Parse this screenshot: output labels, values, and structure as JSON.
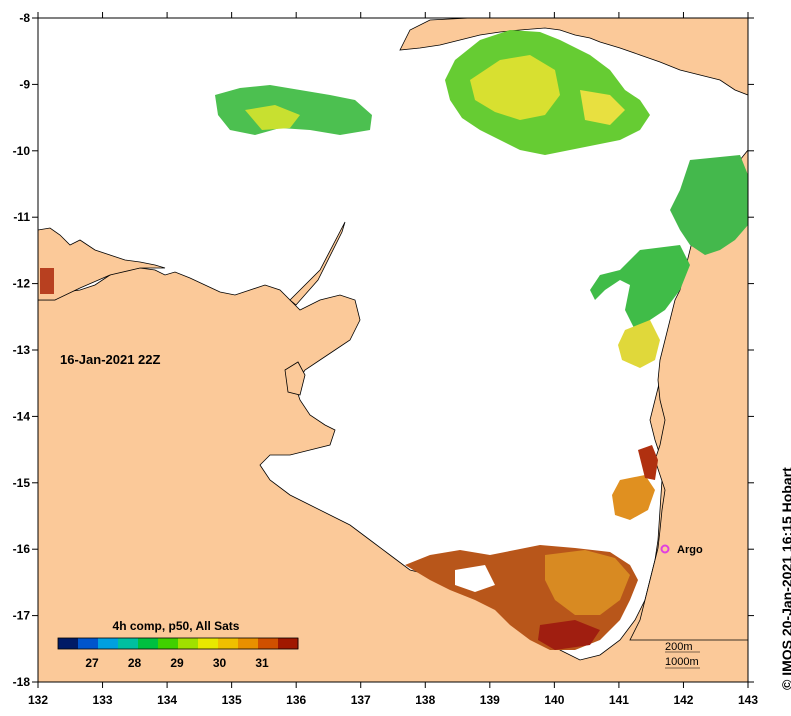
{
  "map": {
    "date_label": "16-Jan-2021 22Z",
    "legend_title": "4h comp, p50, All Sats",
    "colorbar": {
      "ticks": [
        "27",
        "28",
        "29",
        "30",
        "31"
      ],
      "colors": [
        "#001a66",
        "#0055cc",
        "#00a0e0",
        "#00c0a0",
        "#00c040",
        "#40d000",
        "#a0e000",
        "#e8e800",
        "#f0c000",
        "#e89000",
        "#d05000",
        "#a01800"
      ]
    },
    "x_ticks": [
      "132",
      "133",
      "134",
      "135",
      "136",
      "137",
      "138",
      "139",
      "140",
      "141",
      "142",
      "143"
    ],
    "y_ticks": [
      "-8",
      "-9",
      "-10",
      "-11",
      "-12",
      "-13",
      "-14",
      "-15",
      "-16",
      "-17",
      "-18"
    ],
    "argo_label": "Argo",
    "depth_labels": [
      "200m",
      "1000m"
    ],
    "credit": "© IMOS 20-Jan-2021 16:15 Hobart",
    "colors": {
      "land": "#fbc999",
      "sea": "#ffffff",
      "argo": "#e040e0"
    }
  }
}
